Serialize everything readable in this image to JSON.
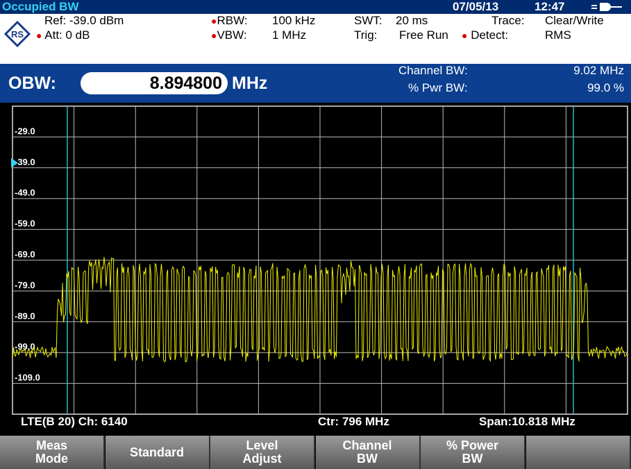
{
  "title_bar": {
    "mode": "Occupied BW",
    "date": "07/05/13",
    "time": "12:47"
  },
  "settings": {
    "ref": "Ref: -39.0 dBm",
    "att": "Att: 0 dB",
    "rbw_label": "RBW:",
    "rbw": "100 kHz",
    "vbw_label": "VBW:",
    "vbw": "1 MHz",
    "swt_label": "SWT:",
    "swt": "20 ms",
    "trig_label": "Trig:",
    "trig": "Free Run",
    "trace_label": "Trace:",
    "trace": "Clear/Write",
    "detect_label": "Detect:",
    "detect": "RMS"
  },
  "result": {
    "label": "OBW:",
    "value": "8.894800",
    "unit": "MHz",
    "channel_bw_label": "Channel BW:",
    "channel_bw": "9.02 MHz",
    "pwr_bw_label": "% Pwr BW:",
    "pwr_bw": "99.0 %"
  },
  "plot": {
    "y_labels": [
      "-29.0",
      "-39.0",
      "-49.0",
      "-59.0",
      "-69.0",
      "-79.0",
      "-89.0",
      "-99.0",
      "-109.0"
    ]
  },
  "footer": {
    "standard": "LTE(B 20) Ch: 6140",
    "center": "Ctr: 796 MHz",
    "span": "Span:10.818 MHz"
  },
  "softkeys": [
    [
      "Meas",
      "Mode"
    ],
    [
      "Standard"
    ],
    [
      "Level",
      "Adjust"
    ],
    [
      "Channel",
      "BW"
    ],
    [
      "% Power",
      "BW"
    ],
    []
  ]
}
